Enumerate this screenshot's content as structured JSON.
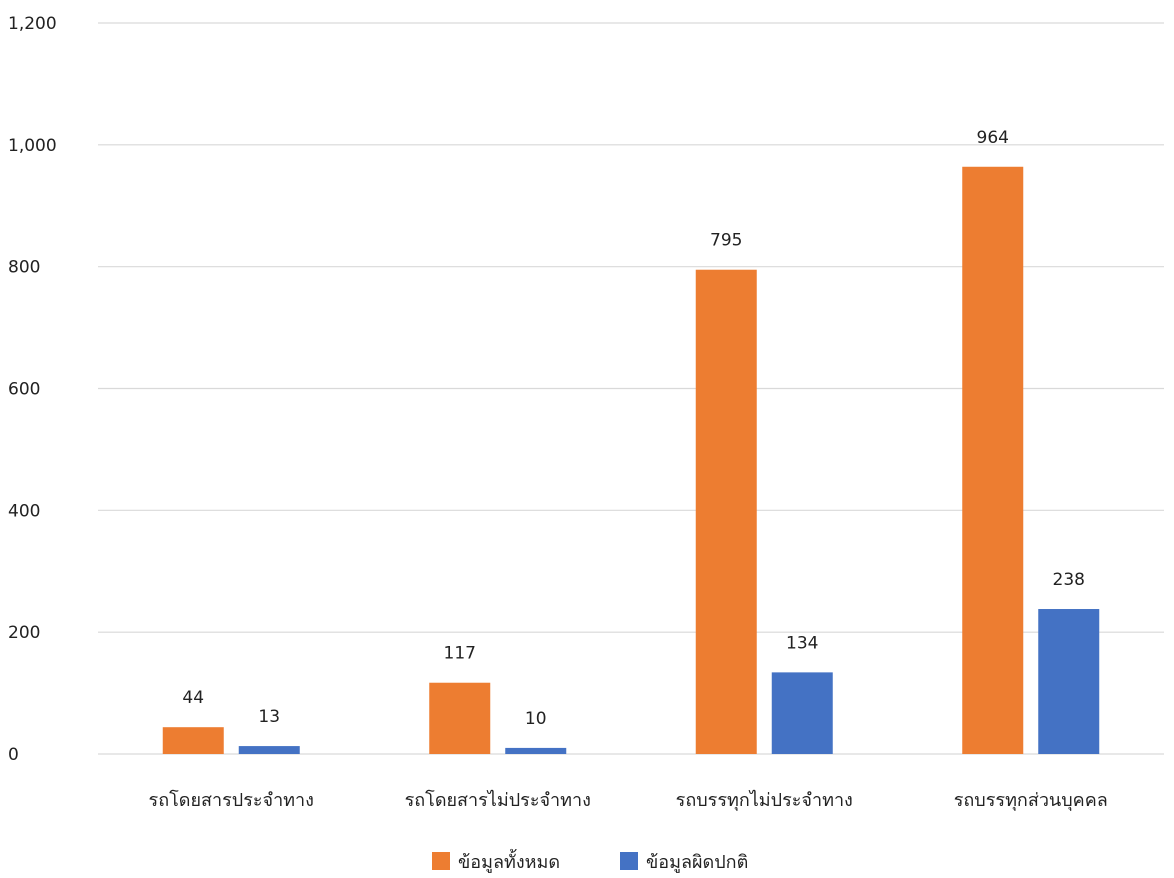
{
  "chart_data": {
    "type": "bar",
    "categories": [
      "รถโดยสารประจำทาง",
      "รถโดยสารไม่ประจำทาง",
      "รถบรรทุกไม่ประจำทาง",
      "รถบรรทุกส่วนบุคคล"
    ],
    "series": [
      {
        "name": "ข้อมูลทั้งหมด",
        "values": [
          44,
          117,
          795,
          964
        ],
        "color": "#ED7D31"
      },
      {
        "name": "ข้อมูลผิดปกติ",
        "values": [
          13,
          10,
          134,
          238
        ],
        "color": "#4472C4"
      }
    ],
    "yticks": [
      "0",
      "200",
      "400",
      "600",
      "800",
      "1,000",
      "1,200"
    ],
    "ylim": [
      0,
      1200
    ],
    "grid": true,
    "legend_position": "bottom",
    "data_labels": true
  }
}
